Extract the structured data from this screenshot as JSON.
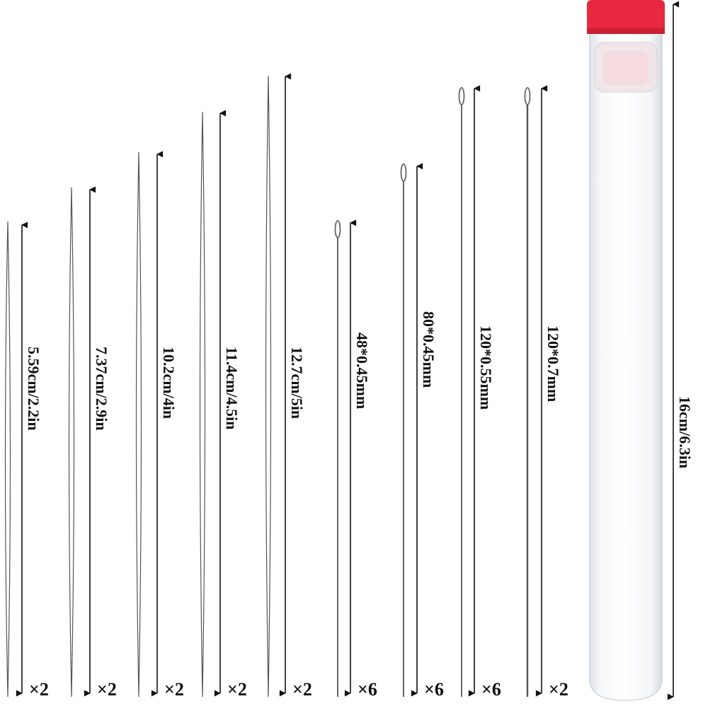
{
  "needles": [
    {
      "kind": "big-eye",
      "size": "5.59cm/2.2in",
      "count": "×2"
    },
    {
      "kind": "big-eye",
      "size": "7.37cm/2.9in",
      "count": "×2"
    },
    {
      "kind": "big-eye",
      "size": "10.2cm/4in",
      "count": "×2"
    },
    {
      "kind": "big-eye",
      "size": "11.4cm/4.5in",
      "count": "×2"
    },
    {
      "kind": "big-eye",
      "size": "12.7cm/5in",
      "count": "×2"
    },
    {
      "kind": "eye",
      "size": "48*0.45mm",
      "count": "×6"
    },
    {
      "kind": "eye",
      "size": "80*0.45mm",
      "count": "×6"
    },
    {
      "kind": "eye",
      "size": "120*0.55mm",
      "count": "×6"
    },
    {
      "kind": "eye",
      "size": "120*0.7mm",
      "count": "×2"
    }
  ],
  "tube": {
    "size": "16cm/6.3in",
    "cap_color": "#e8283f"
  },
  "colors": {
    "needle": "#555555",
    "arrow": "#111111"
  }
}
